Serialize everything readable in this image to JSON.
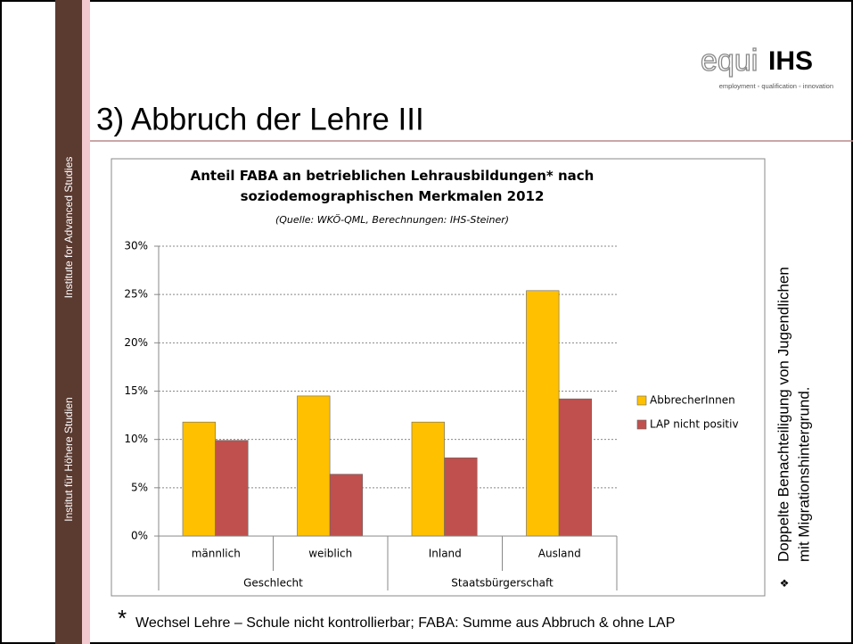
{
  "sidebar": {
    "top": "Institute for Advanced Studies",
    "bottom": "Institut für Höhere Studien"
  },
  "logo": {
    "mark_light": "equi",
    "mark_bold": "IHS",
    "tagline": "employment ◦ qualification ◦ innovation"
  },
  "heading": "3) Abbruch der Lehre III",
  "note": {
    "bullet": "❖",
    "lines": [
      "Doppelte Benachteiligung von Jugendlichen",
      "mit Migrationshintergrund."
    ]
  },
  "footnote": {
    "marker": "*",
    "text": "Wechsel Lehre – Schule nicht kontrollierbar; FABA: Summe aus Abbruch & ohne LAP"
  },
  "chart_data": {
    "type": "bar",
    "title": "Anteil FABA an betrieblichen Lehrausbildungen* nach soziodemographischen Merkmalen 2012",
    "subtitle": "(Quelle: WKÖ-QML, Berechnungen: IHS-Steiner)",
    "categories": [
      "männlich",
      "weiblich",
      "Inland",
      "Ausland"
    ],
    "groups": [
      {
        "label": "Geschlecht",
        "span": 2
      },
      {
        "label": "Staatsbürgerschaft",
        "span": 2
      }
    ],
    "series": [
      {
        "name": "AbbrecherInnen",
        "color": "#FFC000",
        "values": [
          11.8,
          14.5,
          11.8,
          25.4
        ]
      },
      {
        "name": "LAP nicht positiv",
        "color": "#C0504D",
        "values": [
          9.9,
          6.4,
          8.1,
          14.2
        ]
      }
    ],
    "ylim": [
      0,
      30
    ],
    "yticks": [
      {
        "value": 0,
        "label": "0%"
      },
      {
        "value": 5,
        "label": "5%"
      },
      {
        "value": 10,
        "label": "10%"
      },
      {
        "value": 15,
        "label": "15%"
      },
      {
        "value": 20,
        "label": "20%"
      },
      {
        "value": 25,
        "label": "25%"
      },
      {
        "value": 30,
        "label": "30%"
      }
    ],
    "grid": true,
    "legend": "right"
  }
}
